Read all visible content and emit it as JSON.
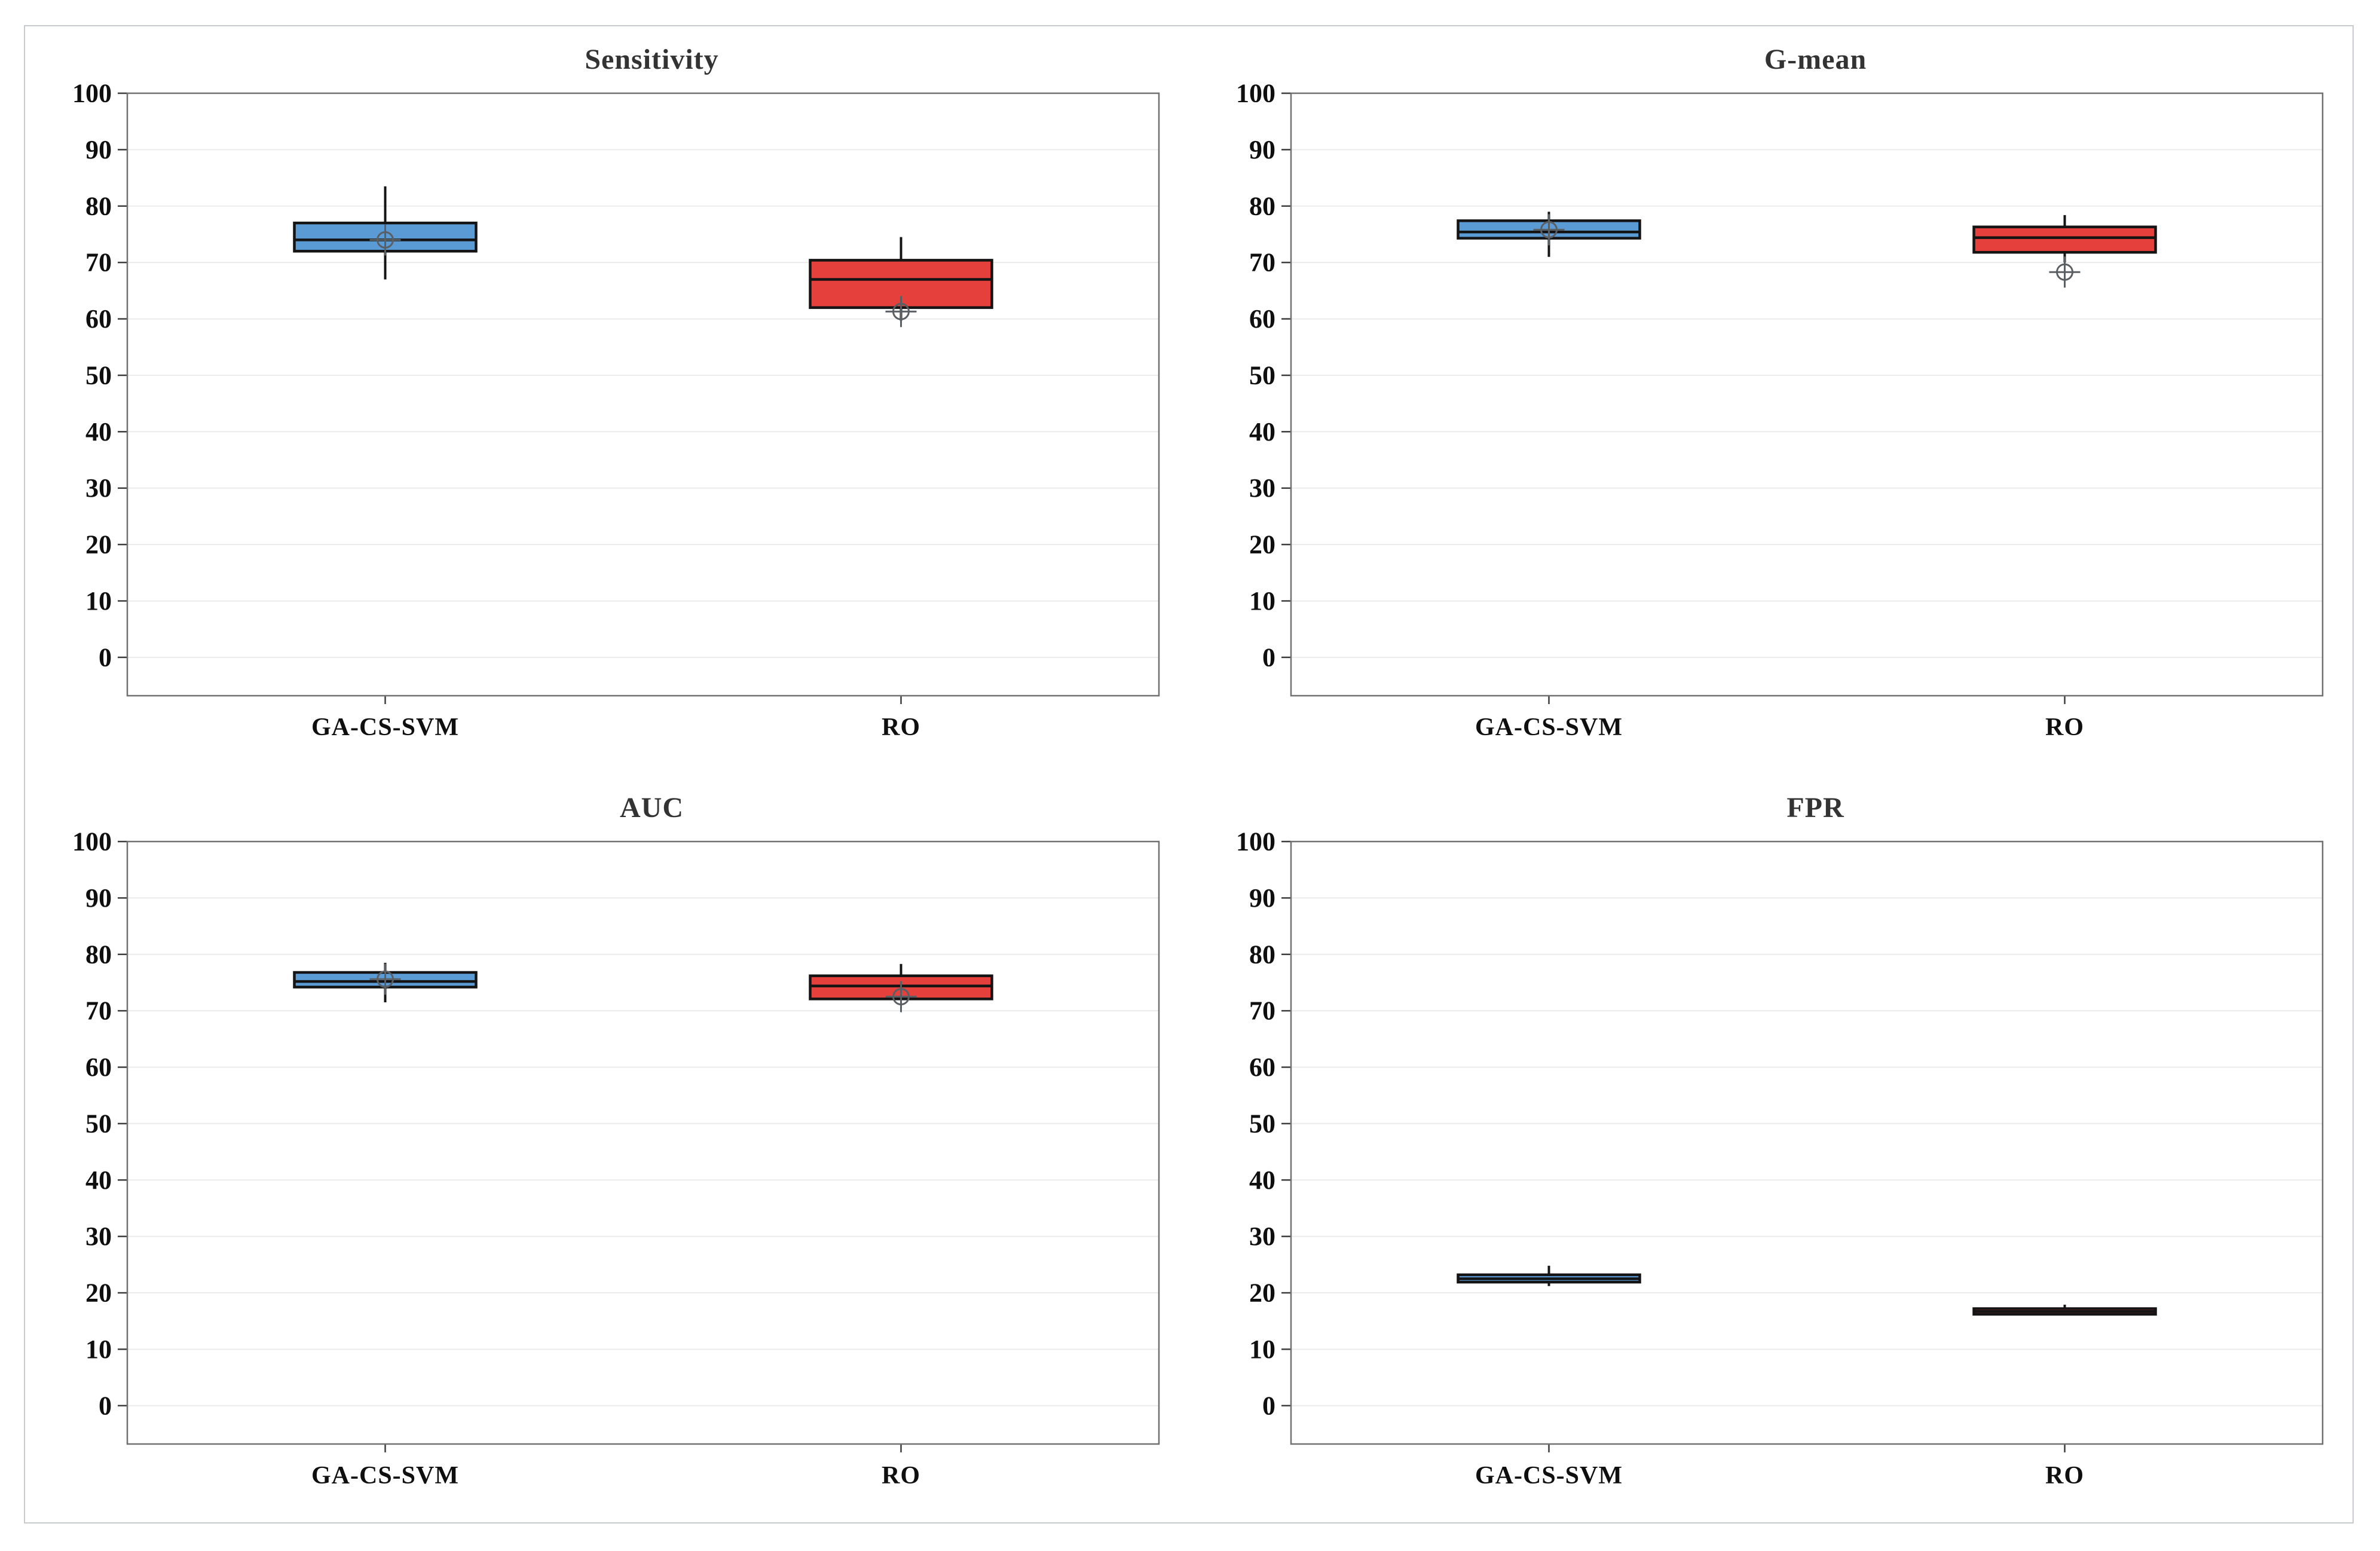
{
  "figure": {
    "background": "#ffffff",
    "frame_border_color": "#c7cbd0",
    "gridline_color": "#ebebeb",
    "plot_border_color": "#707070",
    "box_outline_color": "#141414",
    "mean_marker_color": "#5a5f63",
    "blue_fill": "#5B9BD5",
    "red_fill": "#E5403B"
  },
  "chart_data": [
    {
      "type": "box",
      "title": "Sensitivity",
      "categories": [
        "GA-CS-SVM",
        "RO"
      ],
      "xlabel": "",
      "ylabel": "",
      "ylim": [
        0,
        100
      ],
      "ytick_step": 10,
      "grid": "horizontal",
      "legend": "none",
      "series": [
        {
          "name": "GA-CS-SVM",
          "color": "#5B9BD5",
          "whisker_low": 67.0,
          "q1": 72.0,
          "median": 74.0,
          "q3": 77.0,
          "whisker_high": 83.5,
          "mean": 74.0
        },
        {
          "name": "RO",
          "color": "#E5403B",
          "whisker_low": 59.7,
          "q1": 62.0,
          "median": 67.0,
          "q3": 70.4,
          "whisker_high": 74.5,
          "mean": 61.3
        }
      ]
    },
    {
      "type": "box",
      "title": "G-mean",
      "categories": [
        "GA-CS-SVM",
        "RO"
      ],
      "xlabel": "",
      "ylabel": "",
      "ylim": [
        0,
        100
      ],
      "ytick_step": 10,
      "grid": "horizontal",
      "legend": "none",
      "series": [
        {
          "name": "GA-CS-SVM",
          "color": "#5B9BD5",
          "whisker_low": 71.0,
          "q1": 74.3,
          "median": 75.4,
          "q3": 77.4,
          "whisker_high": 79.0,
          "mean": 75.8
        },
        {
          "name": "RO",
          "color": "#E5403B",
          "whisker_low": 70.0,
          "q1": 71.8,
          "median": 74.4,
          "q3": 76.3,
          "whisker_high": 78.4,
          "mean": 68.3
        }
      ]
    },
    {
      "type": "box",
      "title": "AUC",
      "categories": [
        "GA-CS-SVM",
        "RO"
      ],
      "xlabel": "",
      "ylabel": "",
      "ylim": [
        0,
        100
      ],
      "ytick_step": 10,
      "grid": "horizontal",
      "legend": "none",
      "series": [
        {
          "name": "GA-CS-SVM",
          "color": "#5B9BD5",
          "whisker_low": 71.5,
          "q1": 74.2,
          "median": 75.2,
          "q3": 76.8,
          "whisker_high": 78.5,
          "mean": 75.6
        },
        {
          "name": "RO",
          "color": "#E5403B",
          "whisker_low": 72.1,
          "q1": 72.1,
          "median": 74.4,
          "q3": 76.2,
          "whisker_high": 78.3,
          "mean": 72.5
        }
      ]
    },
    {
      "type": "box",
      "title": "FPR",
      "categories": [
        "GA-CS-SVM",
        "RO"
      ],
      "xlabel": "",
      "ylabel": "",
      "ylim": [
        0,
        100
      ],
      "ytick_step": 10,
      "grid": "horizontal",
      "legend": "none",
      "series": [
        {
          "name": "GA-CS-SVM",
          "color": "#5B9BD5",
          "whisker_low": 21.2,
          "q1": 21.9,
          "median": 22.5,
          "q3": 23.2,
          "whisker_high": 24.8,
          "mean": null
        },
        {
          "name": "RO",
          "color": "#E5403B",
          "whisker_low": 16.1,
          "q1": 16.2,
          "median": 16.7,
          "q3": 17.2,
          "whisker_high": 17.9,
          "mean": null
        }
      ]
    }
  ]
}
